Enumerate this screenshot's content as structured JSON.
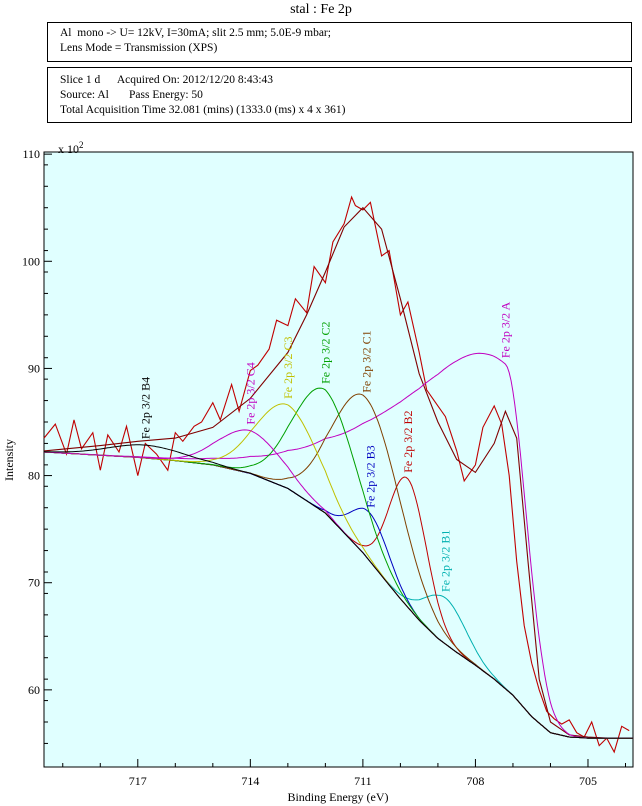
{
  "title": "stal : Fe 2p",
  "info_top": [
    "Al  mono -> U= 12kV, I=30mA; slit 2.5 mm; 5.0E-9 mbar;",
    "Lens Mode = Transmission (XPS)"
  ],
  "info_bottom": [
    "Slice 1 d      Acquired On: 2012/12/20 8:43:43",
    "Source: Al       Pass Energy: 50",
    "Total Acquisition Time 32.081 (mins) (1333.0 (ms) x 4 x 361)"
  ],
  "chart_data": {
    "type": "line",
    "xlabel": "Binding Energy (eV)",
    "ylabel": "Intensity",
    "y_multiplier": "x 10",
    "y_multiplier_exp": "2",
    "x_reversed": true,
    "xlim": [
      719.5,
      703.8
    ],
    "ylim": [
      52.8,
      110.2
    ],
    "x_ticks": [
      717,
      714,
      711,
      708,
      705
    ],
    "y_ticks": [
      60,
      70,
      80,
      90,
      100,
      110
    ],
    "grid": false,
    "background_color": "#e0ffff",
    "series": [
      {
        "name": "",
        "color": "#c00000",
        "role": "raw",
        "x": [
          719.5,
          719.2,
          718.9,
          718.7,
          718.5,
          718.2,
          718.0,
          717.8,
          717.5,
          717.3,
          717.0,
          716.8,
          716.5,
          716.2,
          716.0,
          715.8,
          715.5,
          715.3,
          715.0,
          714.8,
          714.5,
          714.3,
          714.0,
          713.8,
          713.5,
          713.3,
          713.0,
          712.8,
          712.5,
          712.3,
          712.0,
          711.8,
          711.5,
          711.3,
          711.2,
          711.0,
          710.8,
          710.5,
          710.3,
          710.0,
          709.8,
          709.5,
          709.3,
          709.0,
          708.8,
          708.5,
          708.3,
          708.0,
          707.8,
          707.5,
          707.3,
          707.1,
          706.9,
          706.7,
          706.5,
          706.3,
          706.1,
          705.9,
          705.7,
          705.5,
          705.3,
          705.1,
          704.9,
          704.7,
          704.5,
          704.3,
          704.1,
          703.9
        ],
        "y": [
          83.5,
          84.8,
          82.0,
          85.2,
          82.5,
          84.0,
          80.5,
          83.8,
          82.2,
          84.6,
          80.0,
          83.0,
          82.0,
          80.5,
          84.0,
          83.2,
          84.6,
          85.0,
          86.8,
          85.2,
          88.5,
          86.0,
          89.8,
          90.3,
          91.8,
          94.5,
          94.0,
          96.5,
          95.2,
          99.5,
          98.0,
          101.8,
          103.5,
          106.0,
          105.2,
          104.8,
          105.5,
          100.5,
          101.0,
          95.0,
          96.2,
          91.5,
          88.0,
          86.5,
          85.5,
          82.3,
          79.5,
          81.0,
          84.5,
          86.5,
          84.8,
          80.0,
          72.0,
          66.0,
          62.5,
          60.0,
          58.0,
          57.3,
          56.8,
          57.2,
          56.0,
          55.6,
          57.0,
          54.8,
          55.5,
          54.2,
          56.6,
          56.2
        ]
      },
      {
        "name": "",
        "color": "#800000",
        "role": "envelope",
        "x": [
          719.5,
          718,
          717,
          716,
          715,
          714,
          713,
          712.5,
          712,
          711.5,
          711,
          710.5,
          710,
          709.5,
          709,
          708.5,
          708,
          707.5,
          707.2,
          706.9,
          706.6,
          706.3,
          706,
          705.5,
          705,
          704.5,
          703.8
        ],
        "y": [
          82.3,
          82.8,
          83.2,
          83.5,
          84.5,
          87.2,
          91.5,
          95.0,
          99.0,
          103.2,
          105.0,
          103.0,
          96.5,
          89.5,
          85.0,
          81.5,
          80.3,
          83.0,
          86.0,
          83.5,
          72.0,
          61.0,
          57.0,
          55.8,
          55.6,
          55.5,
          55.5
        ]
      },
      {
        "name": "",
        "color": "#808000",
        "role": "background",
        "x": [
          719.5,
          718,
          717,
          716,
          715,
          714,
          713,
          712,
          711,
          710,
          709.5,
          709,
          708.5,
          708,
          707.5,
          707,
          706.5,
          706,
          705.5,
          705,
          704.5,
          703.8
        ],
        "y": [
          82.2,
          81.9,
          81.7,
          81.4,
          81.0,
          80.2,
          78.8,
          76.5,
          72.8,
          68.5,
          66.5,
          64.8,
          63.5,
          62.3,
          61.0,
          59.5,
          57.5,
          56.0,
          55.6,
          55.5,
          55.5,
          55.5
        ]
      },
      {
        "name": "Fe 2p 3/2 A",
        "color": "#c000c0",
        "center": 707.2,
        "amplitude": 30.3,
        "sigma": 0.55,
        "tail": 2.8
      },
      {
        "name": "Fe 2p 3/2 B1",
        "color": "#00b0b0",
        "center": 708.8,
        "amplitude": 4.3,
        "sigma": 0.55
      },
      {
        "name": "Fe 2p 3/2 B2",
        "color": "#c00000",
        "center": 709.8,
        "amplitude": 12.0,
        "sigma": 0.5
      },
      {
        "name": "Fe 2p 3/2 B3",
        "color": "#0000c0",
        "center": 710.8,
        "amplitude": 4.5,
        "sigma": 0.5
      },
      {
        "name": "Fe 2p 3/2 C1",
        "color": "#804000",
        "center": 710.9,
        "amplitude": 14.8,
        "sigma": 0.9
      },
      {
        "name": "Fe 2p 3/2 C2",
        "color": "#00a000",
        "center": 712.0,
        "amplitude": 11.5,
        "sigma": 0.85
      },
      {
        "name": "Fe 2p 3/2 C3",
        "color": "#c0c000",
        "center": 713.0,
        "amplitude": 7.8,
        "sigma": 0.85
      },
      {
        "name": "Fe 2p 3/2 C4",
        "color": "#c000c0",
        "center": 714.0,
        "amplitude": 4.0,
        "sigma": 0.85
      },
      {
        "name": "Fe 2p 3/2 B4",
        "color": "#000000",
        "center": 716.8,
        "amplitude": 1.2,
        "sigma": 1.0
      }
    ]
  }
}
